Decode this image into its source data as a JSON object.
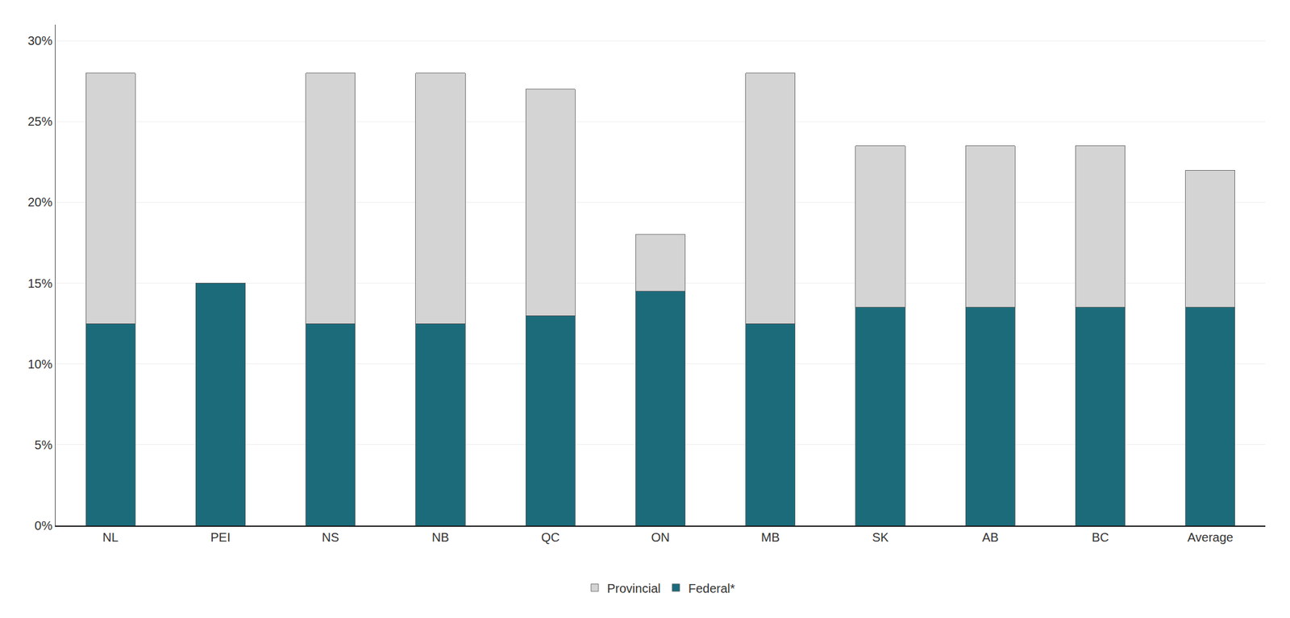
{
  "chart_data": {
    "type": "bar",
    "stacked": true,
    "categories": [
      "NL",
      "PEI",
      "NS",
      "NB",
      "QC",
      "ON",
      "MB",
      "SK",
      "AB",
      "BC",
      "Average"
    ],
    "series": [
      {
        "name": "Federal*",
        "color": "#1b6b7b",
        "values": [
          12.5,
          15.0,
          12.5,
          12.5,
          13.0,
          14.5,
          12.5,
          13.5,
          13.5,
          13.5,
          13.5
        ]
      },
      {
        "name": "Provincial",
        "color": "#d4d4d4",
        "values": [
          15.5,
          0.0,
          15.5,
          15.5,
          14.0,
          3.5,
          15.5,
          10.0,
          10.0,
          10.0,
          8.5
        ]
      }
    ],
    "ylim": [
      0,
      31
    ],
    "yticks": [
      {
        "value": 0,
        "label": "0%"
      },
      {
        "value": 5,
        "label": "5%"
      },
      {
        "value": 10,
        "label": "10%"
      },
      {
        "value": 15,
        "label": "15%"
      },
      {
        "value": 20,
        "label": "20%"
      },
      {
        "value": 25,
        "label": "25%"
      },
      {
        "value": 30,
        "label": "30%"
      }
    ],
    "grid": true,
    "legend": "bottom"
  }
}
